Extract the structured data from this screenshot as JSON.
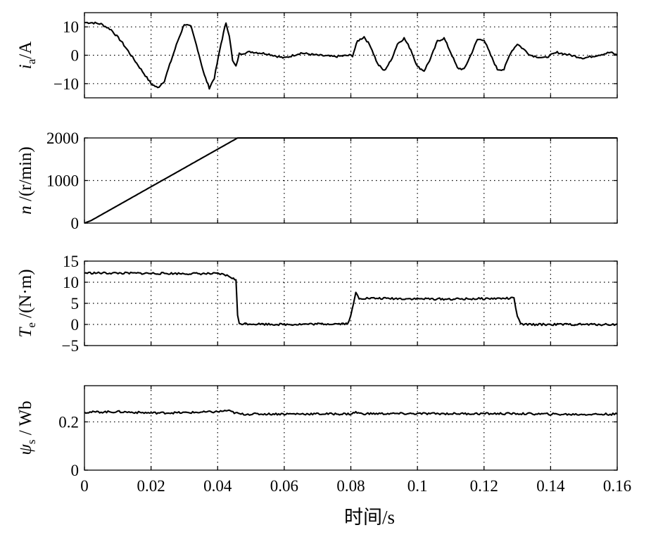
{
  "figure": {
    "xlabel": "时间/s"
  },
  "chart_data": [
    {
      "type": "line",
      "ylabel_main": "i",
      "ylabel_sub": "a",
      "ylabel_tail": "/A",
      "ylim": [
        -15,
        15
      ],
      "yticks": [
        10,
        0,
        -10
      ],
      "ytick_labels": [
        "10",
        "0",
        "−10"
      ],
      "xlim": [
        0,
        0.16
      ],
      "xticks": [
        0,
        0.02,
        0.04,
        0.06,
        0.08,
        0.1,
        0.12,
        0.14,
        0.16
      ],
      "show_xtick_labels": false,
      "grid": true,
      "series": [
        {
          "x": [
            0,
            0.002,
            0.004,
            0.005,
            0.008,
            0.011,
            0.014,
            0.017,
            0.02,
            0.022,
            0.024,
            0.026,
            0.028,
            0.03,
            0.032,
            0.034,
            0.036,
            0.0375,
            0.039,
            0.041,
            0.0425,
            0.0435,
            0.0445,
            0.0455,
            0.0465,
            0.05,
            0.055,
            0.06,
            0.065,
            0.07,
            0.075,
            0.08,
            0.0805,
            0.082,
            0.084,
            0.086,
            0.088,
            0.09,
            0.092,
            0.094,
            0.096,
            0.098,
            0.1,
            0.102,
            0.104,
            0.106,
            0.108,
            0.11,
            0.112,
            0.114,
            0.116,
            0.118,
            0.12,
            0.122,
            0.124,
            0.126,
            0.128,
            0.13,
            0.134,
            0.138,
            0.142,
            0.146,
            0.15,
            0.154,
            0.158,
            0.16
          ],
          "y": [
            11.5,
            11.5,
            11.2,
            11,
            9,
            5,
            0,
            -5,
            -10,
            -11.5,
            -9,
            -2,
            5,
            11,
            10,
            2,
            -7,
            -11.5,
            -8,
            4,
            11.5,
            7,
            -2,
            -4,
            0.5,
            1.2,
            0.5,
            -1,
            0.8,
            0,
            -0.5,
            0,
            -0.2,
            5,
            6.5,
            3,
            -3,
            -5.5,
            -2,
            4,
            6,
            2,
            -4,
            -5.5,
            -1,
            5,
            6,
            1,
            -4.5,
            -5,
            0,
            5.5,
            5.5,
            0,
            -5,
            -5,
            1,
            4,
            0,
            -1,
            1,
            0,
            -1,
            0,
            1,
            0
          ]
        }
      ]
    },
    {
      "type": "line",
      "ylabel_main": "n",
      "ylabel_sub": "",
      "ylabel_tail": " /(r/min)",
      "ylim": [
        0,
        2000
      ],
      "yticks": [
        2000,
        1000,
        0
      ],
      "ytick_labels": [
        "2000",
        "1000",
        "0"
      ],
      "xlim": [
        0,
        0.16
      ],
      "xticks": [
        0,
        0.02,
        0.04,
        0.06,
        0.08,
        0.1,
        0.12,
        0.14,
        0.16
      ],
      "show_xtick_labels": false,
      "grid": true,
      "series": [
        {
          "x": [
            0,
            0.002,
            0.046,
            0.16
          ],
          "y": [
            0,
            60,
            2000,
            2000
          ]
        }
      ]
    },
    {
      "type": "line",
      "ylabel_main": "T",
      "ylabel_sub": "e",
      "ylabel_tail": " /(N·m)",
      "ylim": [
        -5,
        15
      ],
      "yticks": [
        15,
        10,
        5,
        0,
        -5
      ],
      "ytick_labels": [
        "15",
        "10",
        "5",
        "0",
        "−5"
      ],
      "xlim": [
        0,
        0.16
      ],
      "xticks": [
        0,
        0.02,
        0.04,
        0.06,
        0.08,
        0.1,
        0.12,
        0.14,
        0.16
      ],
      "show_xtick_labels": false,
      "grid": true,
      "series": [
        {
          "x": [
            0,
            0.04,
            0.042,
            0.044,
            0.0455,
            0.046,
            0.0465,
            0.06,
            0.079,
            0.08,
            0.0815,
            0.0825,
            0.084,
            0.11,
            0.129,
            0.13,
            0.131,
            0.145,
            0.16
          ],
          "y": [
            12.2,
            12.0,
            11.8,
            11.2,
            10.5,
            2,
            0.2,
            0,
            0.2,
            2,
            7.5,
            6.2,
            6.2,
            6.0,
            6.2,
            2,
            0,
            0,
            0
          ]
        }
      ]
    },
    {
      "type": "line",
      "ylabel_main": "ψ",
      "ylabel_sub": "s",
      "ylabel_tail": " / Wb",
      "ylim": [
        0,
        0.35
      ],
      "yticks": [
        0.2,
        0
      ],
      "ytick_labels": [
        "0.2",
        "0"
      ],
      "xlim": [
        0,
        0.16
      ],
      "xticks": [
        0,
        0.02,
        0.04,
        0.06,
        0.08,
        0.1,
        0.12,
        0.14,
        0.16
      ],
      "xtick_labels": [
        "0",
        "0.02",
        "0.04",
        "0.06",
        "0.08",
        "0.1",
        "0.12",
        "0.14",
        "0.16"
      ],
      "show_xtick_labels": true,
      "grid": true,
      "series": [
        {
          "x": [
            0,
            0.01,
            0.02,
            0.03,
            0.04,
            0.043,
            0.045,
            0.047,
            0.06,
            0.08,
            0.0815,
            0.083,
            0.1,
            0.13,
            0.145,
            0.16
          ],
          "y": [
            0.24,
            0.242,
            0.237,
            0.238,
            0.242,
            0.247,
            0.238,
            0.232,
            0.233,
            0.233,
            0.24,
            0.234,
            0.234,
            0.234,
            0.231,
            0.232
          ]
        }
      ]
    }
  ]
}
